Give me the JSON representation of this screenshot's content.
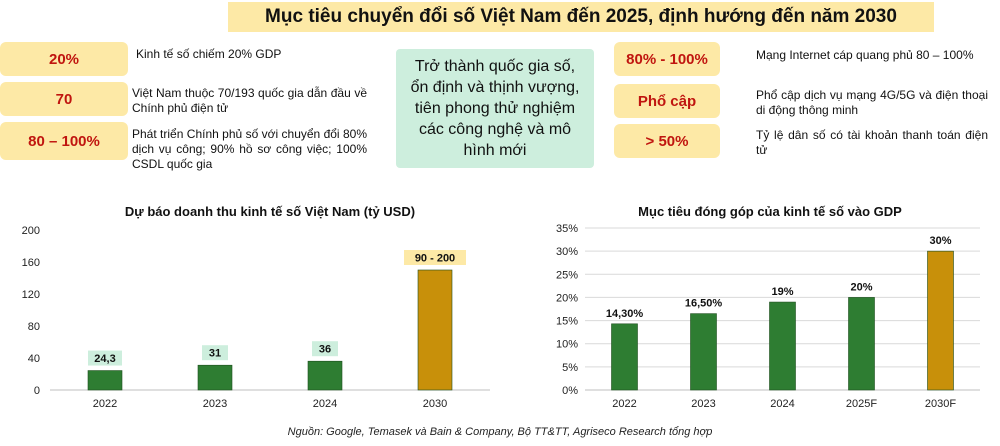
{
  "header": {
    "title": "Mục tiêu chuyển đổi số Việt Nam đến 2025, định hướng đến năm 2030"
  },
  "left_targets": [
    {
      "value": "20%",
      "text": "Kinh tế số chiếm 20% GDP"
    },
    {
      "value": "70",
      "text": "Việt Nam thuộc 70/193 quốc gia dẫn đầu về Chính phủ điện tử"
    },
    {
      "value": "80 – 100%",
      "text": "Phát triển Chính phủ số với chuyển đổi 80% dịch vụ công; 90% hồ sơ công việc; 100% CSDL quốc gia"
    }
  ],
  "center_goal": "Trở thành quốc gia số, ổn định và thịnh vượng, tiên phong thử nghiệm các công nghệ và mô hình mới",
  "right_targets": [
    {
      "value": "80% - 100%",
      "text": "Mạng Internet cáp quang phủ 80 – 100%"
    },
    {
      "value": "Phổ cập",
      "text": "Phổ cập dịch vụ mạng 4G/5G và điện thoại di động thông minh"
    },
    {
      "value": "> 50%",
      "text": "Tỷ lệ dân số có tài khoản thanh toán điện tử"
    }
  ],
  "chart_data": [
    {
      "type": "bar",
      "title": "Dự báo doanh thu kinh tế số Việt Nam (tỷ USD)",
      "categories": [
        "2022",
        "2023",
        "2024",
        "2030"
      ],
      "values": [
        24.3,
        31,
        36,
        150
      ],
      "value_labels": [
        "24,3",
        "31",
        "36",
        "90 - 200"
      ],
      "bar_colors": [
        "#2e7d32",
        "#2e7d32",
        "#2e7d32",
        "#c8900a"
      ],
      "label_bg": [
        "#cdeedd",
        "#cdeedd",
        "#cdeedd",
        "#fde9a6"
      ],
      "ylim": [
        0,
        200
      ],
      "yticks": [
        "0",
        "40",
        "80",
        "120",
        "160",
        "200"
      ],
      "ytick_values": [
        0,
        40,
        80,
        120,
        160,
        200
      ],
      "xlabel": "",
      "ylabel": ""
    },
    {
      "type": "bar",
      "title": "Mục tiêu đóng góp của kinh tế số vào GDP",
      "categories": [
        "2022",
        "2023",
        "2024",
        "2025F",
        "2030F"
      ],
      "values": [
        14.3,
        16.5,
        19,
        20,
        30
      ],
      "value_labels": [
        "14,30%",
        "16,50%",
        "19%",
        "20%",
        "30%"
      ],
      "bar_colors": [
        "#2e7d32",
        "#2e7d32",
        "#2e7d32",
        "#2e7d32",
        "#c8900a"
      ],
      "ylim": [
        0,
        35
      ],
      "yticks": [
        "0%",
        "5%",
        "10%",
        "15%",
        "20%",
        "25%",
        "30%",
        "35%"
      ],
      "ytick_values": [
        0,
        5,
        10,
        15,
        20,
        25,
        30,
        35
      ],
      "xlabel": "",
      "ylabel": ""
    }
  ],
  "source": "Nguồn: Google, Temasek và Bain & Company, Bộ TT&TT, Agriseco Research tổng hợp"
}
